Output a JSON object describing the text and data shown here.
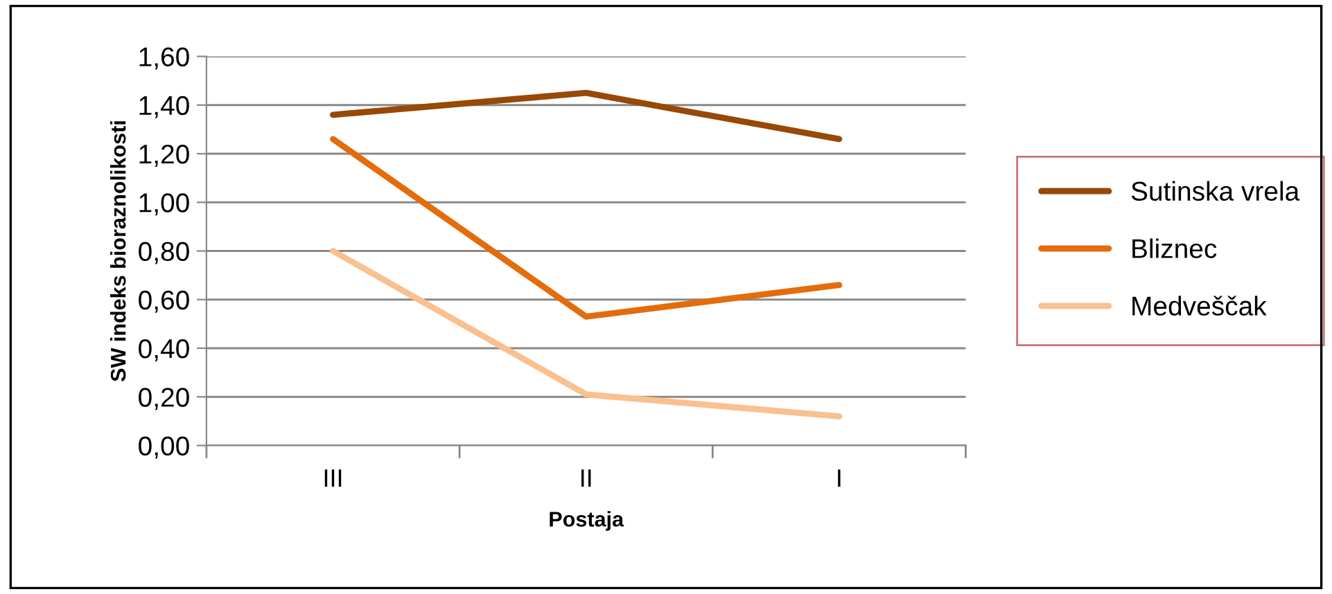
{
  "chart_data": {
    "type": "line",
    "xlabel": "Postaja",
    "ylabel": "SW indeks bioraznolikosti",
    "categories": [
      "III",
      "II",
      "I"
    ],
    "series": [
      {
        "name": "Sutinska vrela",
        "color": "#984807",
        "values": [
          1.36,
          1.45,
          1.26
        ]
      },
      {
        "name": "Bliznec",
        "color": "#e46c0a",
        "values": [
          1.26,
          0.53,
          0.66
        ]
      },
      {
        "name": "Medveščak",
        "color": "#fac090",
        "values": [
          0.8,
          0.21,
          0.12
        ]
      }
    ],
    "ylim": [
      0,
      1.6
    ],
    "yticks": [
      {
        "value": 0,
        "label": "0,00"
      },
      {
        "value": 0.2,
        "label": "0,20"
      },
      {
        "value": 0.4,
        "label": "0,40"
      },
      {
        "value": 0.6,
        "label": "0,60"
      },
      {
        "value": 0.8,
        "label": "0,80"
      },
      {
        "value": 1.0,
        "label": "1,00"
      },
      {
        "value": 1.2,
        "label": "1,20"
      },
      {
        "value": 1.4,
        "label": "1,40"
      },
      {
        "value": 1.6,
        "label": "1,60"
      }
    ],
    "grid": "y",
    "legend": "right",
    "marker": "none",
    "line_style": "solid"
  }
}
